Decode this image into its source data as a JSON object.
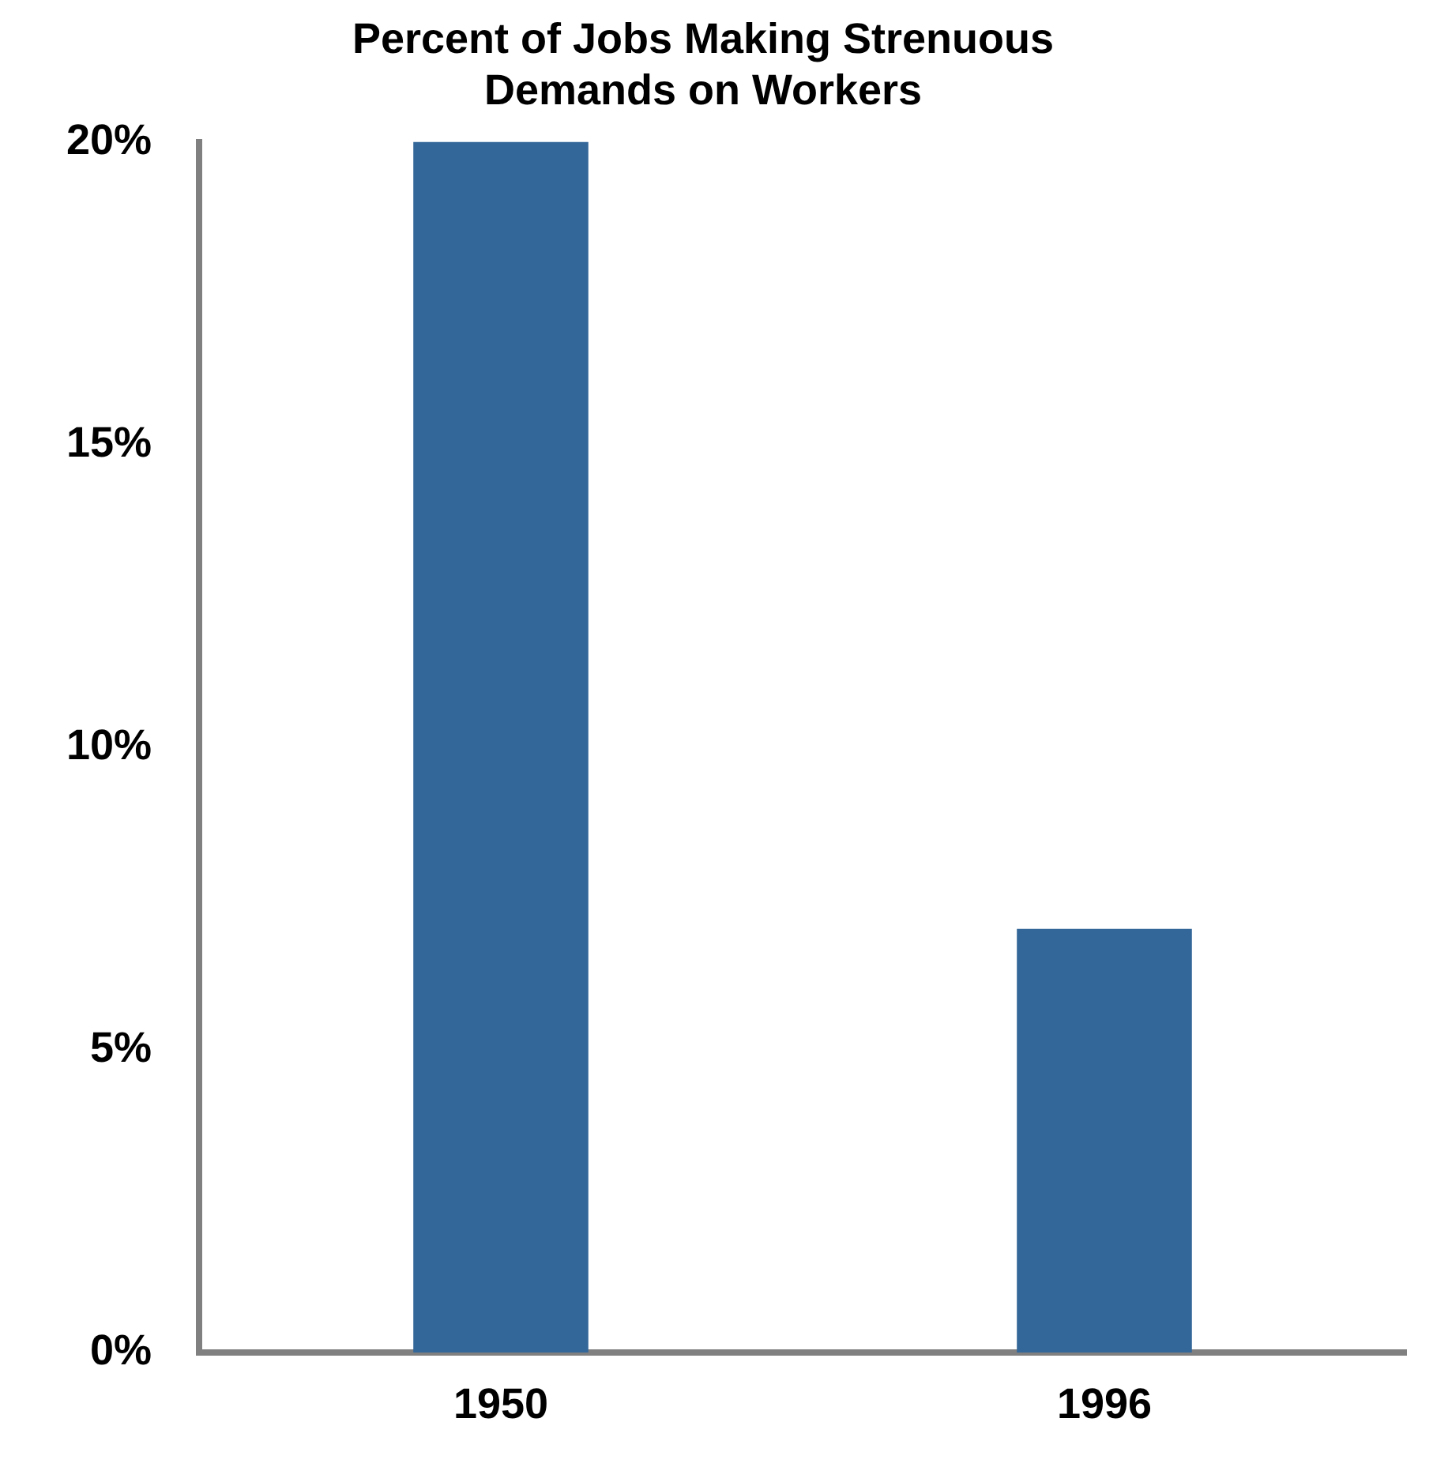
{
  "chart_data": {
    "type": "bar",
    "title": "Percent of Jobs Making Strenuous Demands on Workers",
    "categories": [
      "1950",
      "1996"
    ],
    "values": [
      20,
      7
    ],
    "color": "#336699",
    "ylim": [
      0,
      20
    ],
    "yticks": [
      {
        "value": 0,
        "label": "0%"
      },
      {
        "value": 5,
        "label": "5%"
      },
      {
        "value": 10,
        "label": "10%"
      },
      {
        "value": 15,
        "label": "15%"
      },
      {
        "value": 20,
        "label": "20%"
      }
    ],
    "grid": false,
    "legend": false
  }
}
